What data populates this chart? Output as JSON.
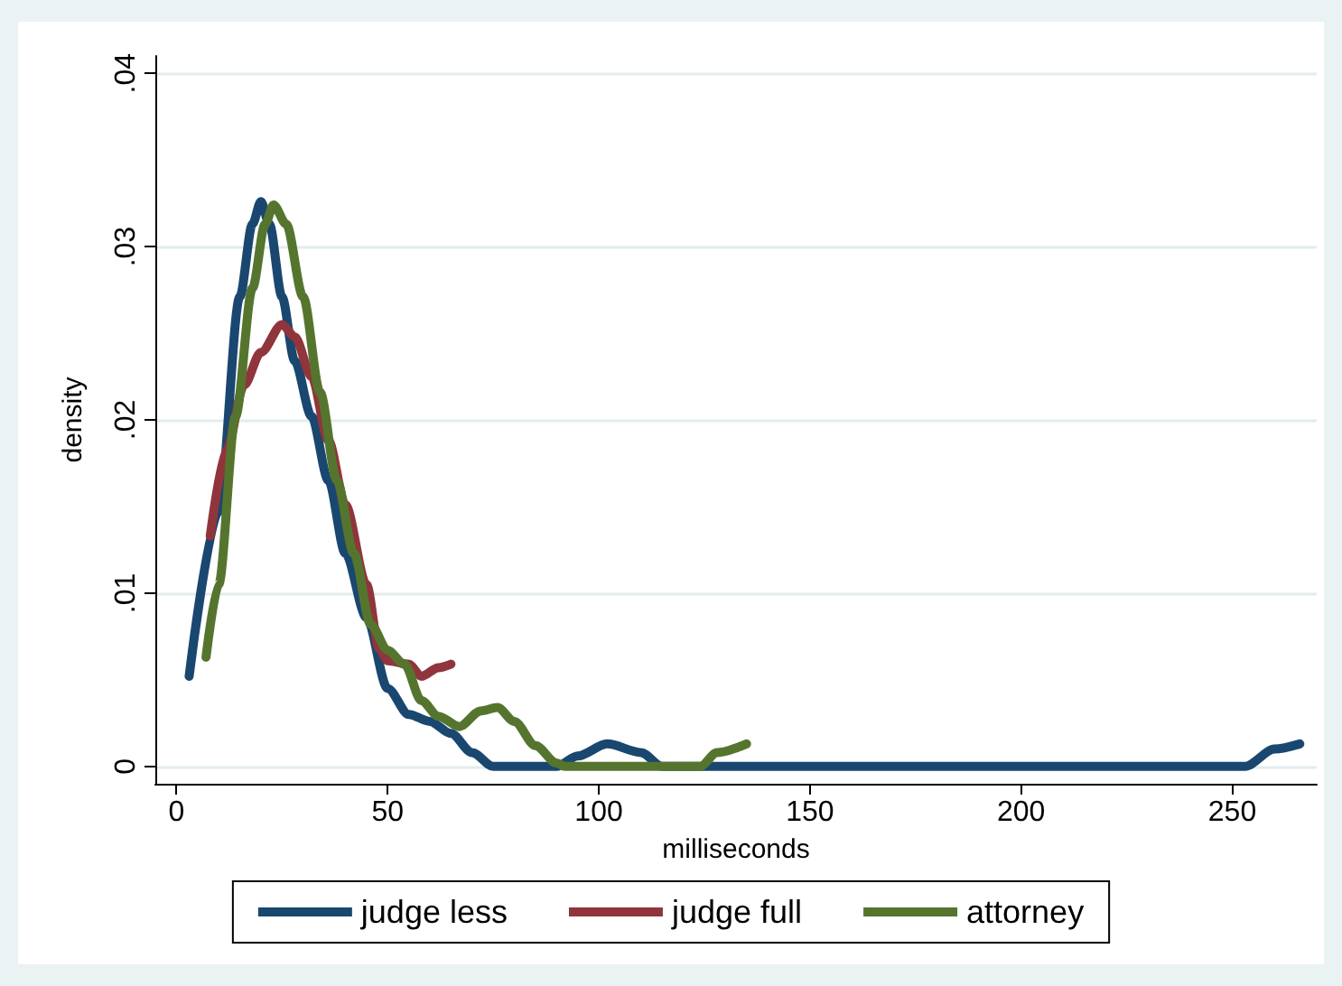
{
  "chart_data": {
    "type": "line",
    "xlabel": "milliseconds",
    "ylabel": "density",
    "xlim": [
      -5,
      270
    ],
    "xticks": [
      0,
      50,
      100,
      150,
      200,
      250
    ],
    "ylim": [
      -0.001,
      0.041
    ],
    "yticks": [
      {
        "value": 0,
        "label": "0"
      },
      {
        "value": 0.01,
        "label": ".01"
      },
      {
        "value": 0.02,
        "label": ".02"
      },
      {
        "value": 0.03,
        "label": ".03"
      },
      {
        "value": 0.04,
        "label": ".04"
      }
    ],
    "grid": "y",
    "legend": "bottom",
    "line_style": "solid",
    "marker": "none",
    "series": [
      {
        "name": "judge less",
        "color": "#1a476f",
        "x": [
          3,
          10,
          15,
          18,
          20,
          22,
          25,
          28,
          32,
          36,
          40,
          45,
          50,
          55,
          60,
          65,
          70,
          75,
          90,
          95,
          102,
          110,
          115,
          253,
          260,
          266
        ],
        "values": [
          0.0052,
          0.0147,
          0.0271,
          0.0313,
          0.0326,
          0.0313,
          0.0271,
          0.0234,
          0.0202,
          0.0165,
          0.0123,
          0.0086,
          0.0045,
          0.003,
          0.0026,
          0.0019,
          0.0008,
          0,
          0,
          0.0006,
          0.0013,
          0.0008,
          0,
          0,
          0.001,
          0.0013
        ]
      },
      {
        "name": "judge full",
        "color": "#90353b",
        "x": [
          8,
          12,
          16,
          20,
          25,
          28,
          32,
          36,
          40,
          45,
          48,
          50,
          55,
          58,
          62,
          65
        ],
        "values": [
          0.0133,
          0.0184,
          0.022,
          0.0239,
          0.0255,
          0.0248,
          0.0225,
          0.0188,
          0.0151,
          0.0105,
          0.0068,
          0.0061,
          0.0059,
          0.0052,
          0.0057,
          0.0059
        ]
      },
      {
        "name": "attorney",
        "color": "#55752f",
        "x": [
          7,
          10,
          14,
          18,
          21,
          23,
          26,
          30,
          34,
          38,
          42,
          46,
          50,
          54,
          58,
          62,
          67,
          72,
          76,
          80,
          85,
          90,
          92,
          124,
          128,
          135
        ],
        "values": [
          0.0063,
          0.0105,
          0.0202,
          0.0276,
          0.0313,
          0.0324,
          0.0313,
          0.0271,
          0.0216,
          0.0165,
          0.0123,
          0.0082,
          0.0067,
          0.0059,
          0.0038,
          0.0029,
          0.0023,
          0.0032,
          0.0034,
          0.0026,
          0.0012,
          0.0002,
          0,
          0,
          0.0008,
          0.0013
        ]
      }
    ]
  }
}
